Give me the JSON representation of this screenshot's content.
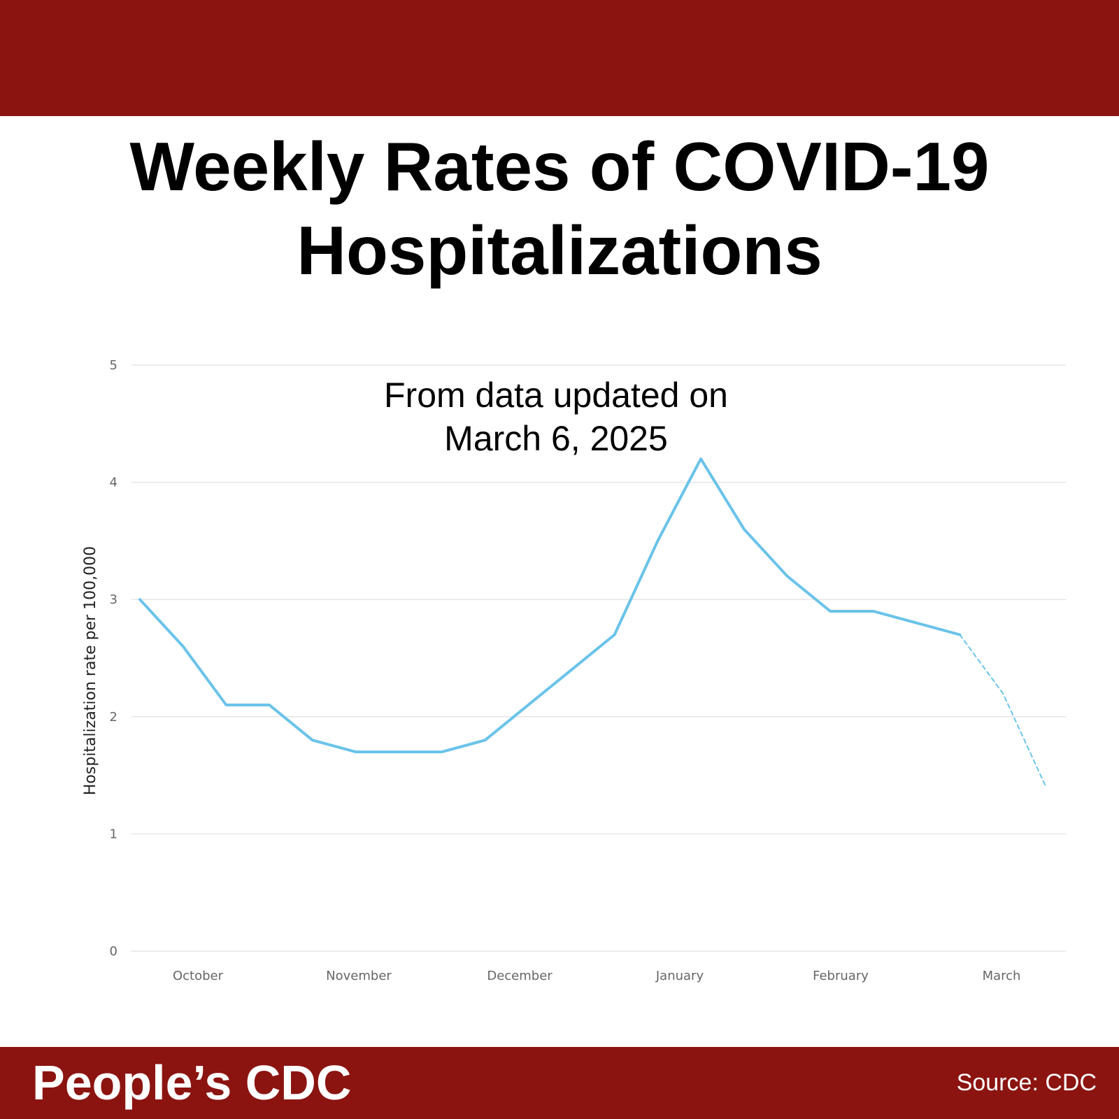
{
  "header": {
    "title_line1": "Weekly Rates of COVID-19",
    "title_line2": "Hospitalizations",
    "color": "#8b1411"
  },
  "annotation": {
    "line1": "From data updated on",
    "line2": "March 6, 2025"
  },
  "footer": {
    "brand": "People’s CDC",
    "source": "Source: CDC",
    "color": "#8b1411"
  },
  "chart_data": {
    "type": "line",
    "title": "Weekly Rates of COVID-19 Hospitalizations",
    "subtitle": "From data updated on March 6, 2025",
    "xlabel": "",
    "ylabel": "Hospitalization rate per 100,000",
    "ylim": [
      0,
      5
    ],
    "yticks": [
      0,
      1,
      2,
      3,
      4,
      5
    ],
    "grid": true,
    "legend": "none",
    "line_color": "#6ac3ea",
    "x_ticks": [
      "October",
      "November",
      "December",
      "January",
      "February",
      "March"
    ],
    "x": [
      "2024-09-28",
      "2024-10-05",
      "2024-10-12",
      "2024-10-19",
      "2024-10-26",
      "2024-11-02",
      "2024-11-09",
      "2024-11-16",
      "2024-11-23",
      "2024-11-30",
      "2024-12-07",
      "2024-12-14",
      "2024-12-21",
      "2024-12-28",
      "2025-01-04",
      "2025-01-11",
      "2025-01-18",
      "2025-01-25",
      "2025-02-01",
      "2025-02-08",
      "2025-02-15",
      "2025-02-22",
      "2025-03-01"
    ],
    "series": [
      {
        "values": [
          3.0,
          2.6,
          2.1,
          2.1,
          1.8,
          1.7,
          1.7,
          1.7,
          1.8,
          2.1,
          2.4,
          2.7,
          3.5,
          4.2,
          3.6,
          3.2,
          2.9,
          2.9,
          2.8,
          2.7,
          null,
          null,
          null
        ],
        "style": "solid"
      },
      {
        "values": [
          null,
          null,
          null,
          null,
          null,
          null,
          null,
          null,
          null,
          null,
          null,
          null,
          null,
          null,
          null,
          null,
          null,
          null,
          null,
          2.7,
          2.2,
          1.4,
          null
        ],
        "style": "dashed"
      }
    ]
  }
}
